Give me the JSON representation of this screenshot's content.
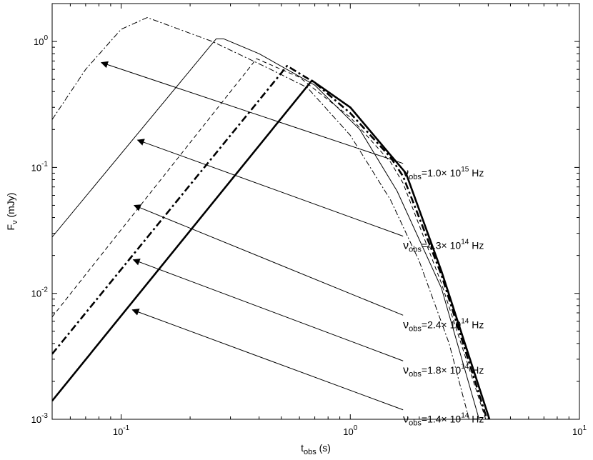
{
  "chart_data": {
    "type": "line",
    "x_scale": "log",
    "y_scale": "log",
    "xlim": [
      0.05,
      10
    ],
    "ylim": [
      0.001,
      2
    ],
    "xlabel": {
      "main": "t",
      "sub": "obs",
      "tail": " (s)"
    },
    "ylabel": {
      "main": "F",
      "sub": "ν",
      "tail": " (mJy)"
    },
    "x_ticks": [
      {
        "value": 0.1,
        "base": "10",
        "exp": "-1"
      },
      {
        "value": 1,
        "base": "10",
        "exp": "0"
      },
      {
        "value": 10,
        "base": "10",
        "exp": "1"
      }
    ],
    "y_ticks": [
      {
        "value": 0.001,
        "base": "10",
        "exp": "-3"
      },
      {
        "value": 0.01,
        "base": "10",
        "exp": "-2"
      },
      {
        "value": 0.1,
        "base": "10",
        "exp": "-1"
      },
      {
        "value": 1,
        "base": "10",
        "exp": "0"
      }
    ],
    "grid": false,
    "series": [
      {
        "label": {
          "pre": "ν",
          "sub": "obs",
          "mid": "=1.0× 10",
          "sup": "15",
          "post": " Hz"
        },
        "style": "dashdot-thin",
        "points": [
          [
            0.05,
            0.24
          ],
          [
            0.07,
            0.6
          ],
          [
            0.1,
            1.25
          ],
          [
            0.13,
            1.55
          ],
          [
            0.25,
            1.0
          ],
          [
            0.45,
            0.6
          ],
          [
            0.65,
            0.43
          ],
          [
            1.0,
            0.18
          ],
          [
            1.5,
            0.055
          ],
          [
            2.0,
            0.018
          ],
          [
            2.7,
            0.004
          ],
          [
            3.3,
            0.001
          ]
        ]
      },
      {
        "label": {
          "pre": "ν",
          "sub": "obs",
          "mid": "=4.3× 10",
          "sup": "14",
          "post": " Hz"
        },
        "style": "solid-thin",
        "points": [
          [
            0.05,
            0.028
          ],
          [
            0.26,
            1.05
          ],
          [
            0.28,
            1.05
          ],
          [
            0.4,
            0.8
          ],
          [
            0.7,
            0.45
          ],
          [
            1.1,
            0.2
          ],
          [
            1.6,
            0.065
          ],
          [
            2.5,
            0.011
          ],
          [
            3.65,
            0.001
          ]
        ]
      },
      {
        "label": {
          "pre": "ν",
          "sub": "obs",
          "mid": "=2.4× 10",
          "sup": "14",
          "post": " Hz"
        },
        "style": "dashed-thin",
        "points": [
          [
            0.05,
            0.0065
          ],
          [
            0.39,
            0.73
          ],
          [
            0.6,
            0.52
          ],
          [
            1.0,
            0.25
          ],
          [
            1.5,
            0.11
          ],
          [
            1.7,
            0.075
          ],
          [
            2.5,
            0.012
          ],
          [
            3.9,
            0.001
          ]
        ]
      },
      {
        "label": {
          "pre": "ν",
          "sub": "obs",
          "mid": "=1.8× 10",
          "sup": "14",
          "post": " Hz"
        },
        "style": "dashdot-thick",
        "points": [
          [
            0.05,
            0.0033
          ],
          [
            0.53,
            0.64
          ],
          [
            0.7,
            0.47
          ],
          [
            1.0,
            0.27
          ],
          [
            1.5,
            0.12
          ],
          [
            1.7,
            0.085
          ],
          [
            2.5,
            0.014
          ],
          [
            3.95,
            0.001
          ]
        ]
      },
      {
        "label": {
          "pre": "ν",
          "sub": "obs",
          "mid": "=1.4× 10",
          "sup": "14",
          "post": " Hz"
        },
        "style": "solid-thick",
        "points": [
          [
            0.05,
            0.0014
          ],
          [
            0.68,
            0.49
          ],
          [
            1.0,
            0.3
          ],
          [
            1.5,
            0.125
          ],
          [
            1.75,
            0.09
          ],
          [
            2.5,
            0.015
          ],
          [
            4.05,
            0.001
          ]
        ]
      }
    ],
    "annotations": [
      {
        "series_index": 0,
        "arrow_tip": [
          0.082,
          0.68
        ],
        "label_anchor": [
          1.7,
          0.085
        ]
      },
      {
        "series_index": 1,
        "arrow_tip": [
          0.118,
          0.165
        ],
        "label_anchor": [
          1.7,
          0.0225
        ]
      },
      {
        "series_index": 2,
        "arrow_tip": [
          0.114,
          0.05
        ],
        "label_anchor": [
          1.7,
          0.0053
        ]
      },
      {
        "series_index": 3,
        "arrow_tip": [
          0.113,
          0.0185
        ],
        "label_anchor": [
          1.7,
          0.0023
        ]
      },
      {
        "series_index": 4,
        "arrow_tip": [
          0.112,
          0.0074
        ],
        "label_anchor": [
          1.7,
          0.00094
        ]
      }
    ]
  }
}
